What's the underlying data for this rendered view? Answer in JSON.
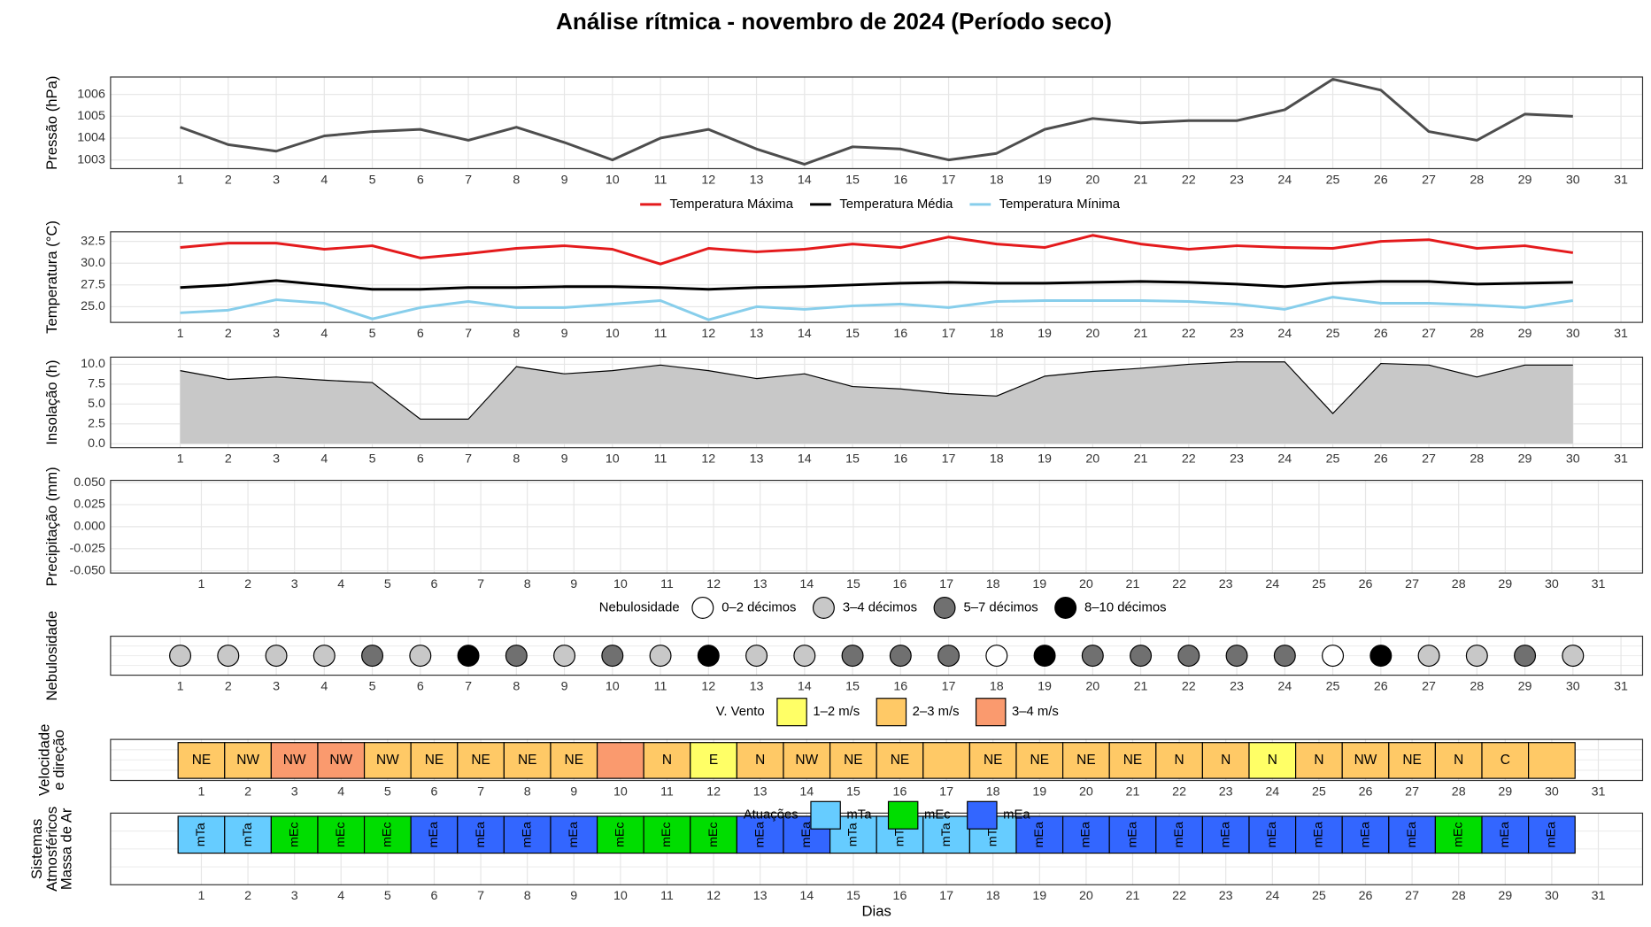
{
  "title": "Análise rítmica - novembro de 2024 (Período seco)",
  "chart_data": [
    {
      "type": "line",
      "ylabel": [
        "Pressão (hPa)"
      ],
      "color": "#4d4d4d",
      "grid": true,
      "x": [
        1,
        2,
        3,
        4,
        5,
        6,
        7,
        8,
        9,
        10,
        11,
        12,
        13,
        14,
        15,
        16,
        17,
        18,
        19,
        20,
        21,
        22,
        23,
        24,
        25,
        26,
        27,
        28,
        29,
        30
      ],
      "values": [
        1004.5,
        1003.7,
        1003.4,
        1004.1,
        1004.3,
        1004.4,
        1003.9,
        1004.5,
        1003.8,
        1003.0,
        1004.0,
        1004.4,
        1003.5,
        1002.8,
        1003.6,
        1003.5,
        1003.0,
        1003.3,
        1004.4,
        1004.9,
        1004.7,
        1004.8,
        1004.8,
        1005.3,
        1006.7,
        1006.2,
        1004.3,
        1003.9,
        1005.1,
        1005.0
      ],
      "xlim": [
        -0.45,
        31.45
      ],
      "xticks": [
        1,
        2,
        3,
        4,
        5,
        6,
        7,
        8,
        9,
        10,
        11,
        12,
        13,
        14,
        15,
        16,
        17,
        18,
        19,
        20,
        21,
        22,
        23,
        24,
        25,
        26,
        27,
        28,
        29,
        30,
        31
      ],
      "ylim": [
        1002.6,
        1006.8
      ],
      "yticks": [
        1003,
        1004,
        1005,
        1006
      ]
    },
    {
      "type": "line",
      "ylabel": [
        "Temperatura (°C)"
      ],
      "grid": true,
      "legend": "top",
      "x": [
        1,
        2,
        3,
        4,
        5,
        6,
        7,
        8,
        9,
        10,
        11,
        12,
        13,
        14,
        15,
        16,
        17,
        18,
        19,
        20,
        21,
        22,
        23,
        24,
        25,
        26,
        27,
        28,
        29,
        30
      ],
      "series": [
        {
          "name": "Temperatura Máxima",
          "color": "#e41a1c",
          "values": [
            31.8,
            32.3,
            32.3,
            31.6,
            32.0,
            30.6,
            31.1,
            31.7,
            32.0,
            31.6,
            29.9,
            31.7,
            31.3,
            31.6,
            32.2,
            31.8,
            33.0,
            32.2,
            31.8,
            33.2,
            32.2,
            31.6,
            32.0,
            31.8,
            31.7,
            32.5,
            32.7,
            31.7,
            32.0,
            31.2
          ]
        },
        {
          "name": "Temperatura Média",
          "color": "#000000",
          "values": [
            27.2,
            27.5,
            28.0,
            27.5,
            27.0,
            27.0,
            27.2,
            27.2,
            27.3,
            27.3,
            27.2,
            27.0,
            27.2,
            27.3,
            27.5,
            27.7,
            27.8,
            27.7,
            27.7,
            27.8,
            27.9,
            27.8,
            27.6,
            27.3,
            27.7,
            27.9,
            27.9,
            27.6,
            27.7,
            27.8
          ]
        },
        {
          "name": "Temperatura Mínima",
          "color": "#87ceeb",
          "values": [
            24.3,
            24.6,
            25.8,
            25.4,
            23.6,
            24.9,
            25.6,
            24.9,
            24.9,
            25.3,
            25.7,
            23.5,
            25.0,
            24.7,
            25.1,
            25.3,
            24.9,
            25.6,
            25.7,
            25.7,
            25.7,
            25.6,
            25.3,
            24.7,
            26.1,
            25.4,
            25.4,
            25.2,
            24.9,
            25.7
          ]
        }
      ],
      "xlim": [
        -0.45,
        31.45
      ],
      "xticks": [
        1,
        2,
        3,
        4,
        5,
        6,
        7,
        8,
        9,
        10,
        11,
        12,
        13,
        14,
        15,
        16,
        17,
        18,
        19,
        20,
        21,
        22,
        23,
        24,
        25,
        26,
        27,
        28,
        29,
        30,
        31
      ],
      "ylim": [
        23.2,
        33.6
      ],
      "yticks": [
        {
          "value": 25,
          "label": "25.0"
        },
        27.5,
        {
          "value": 30,
          "label": "30.0"
        },
        32.5
      ]
    },
    {
      "type": "area",
      "ylabel": [
        "Insolação (h)"
      ],
      "color": "#000000",
      "fill": "#c8c8c8",
      "grid": true,
      "x": [
        1,
        2,
        3,
        4,
        5,
        6,
        7,
        8,
        9,
        10,
        11,
        12,
        13,
        14,
        15,
        16,
        17,
        18,
        19,
        20,
        21,
        22,
        23,
        24,
        25,
        26,
        27,
        28,
        29,
        30
      ],
      "values": [
        9.2,
        8.1,
        8.4,
        8.0,
        7.7,
        3.1,
        3.1,
        9.7,
        8.8,
        9.2,
        9.9,
        9.2,
        8.2,
        8.8,
        7.2,
        6.9,
        6.3,
        6.0,
        8.5,
        9.1,
        9.5,
        10.0,
        10.3,
        10.3,
        3.8,
        10.1,
        9.9,
        8.4,
        9.9,
        9.9
      ],
      "xlim": [
        -0.45,
        31.45
      ],
      "xticks": [
        1,
        2,
        3,
        4,
        5,
        6,
        7,
        8,
        9,
        10,
        11,
        12,
        13,
        14,
        15,
        16,
        17,
        18,
        19,
        20,
        21,
        22,
        23,
        24,
        25,
        26,
        27,
        28,
        29,
        30,
        31
      ],
      "ylim": [
        -0.5,
        10.9
      ],
      "yticks": [
        {
          "value": 0,
          "label": "0.0"
        },
        2.5,
        {
          "value": 5,
          "label": "5.0"
        },
        7.5,
        {
          "value": 10,
          "label": "10.0"
        }
      ]
    },
    {
      "type": "line",
      "ylabel": [
        "Precipitação (mm)"
      ],
      "grid": true,
      "xlim": [
        -0.95,
        31.95
      ],
      "xticks": [
        1,
        2,
        3,
        4,
        5,
        6,
        7,
        8,
        9,
        10,
        11,
        12,
        13,
        14,
        15,
        16,
        17,
        18,
        19,
        20,
        21,
        22,
        23,
        24,
        25,
        26,
        27,
        28,
        29,
        30,
        31
      ],
      "ylim": [
        -0.0525,
        0.0525
      ],
      "yticks": [
        {
          "value": -0.05,
          "label": "-0.050"
        },
        {
          "value": -0.025,
          "label": "-0.025"
        },
        {
          "value": 0,
          "label": "0.000"
        },
        {
          "value": 0.025,
          "label": "0.025"
        },
        {
          "value": 0.05,
          "label": "0.050"
        }
      ]
    },
    {
      "type": "dot",
      "ylabel": [
        "Nebulosidade"
      ],
      "legend_title": "Nebulosidade",
      "legend": "top",
      "grid": true,
      "classes": [
        {
          "label": "0–2 décimos",
          "color": "#ffffff"
        },
        {
          "label": "3–4 décimos",
          "color": "#c8c8c8"
        },
        {
          "label": "5–7 décimos",
          "color": "#707070"
        },
        {
          "label": "8–10 décimos",
          "color": "#000000"
        }
      ],
      "x": [
        1,
        2,
        3,
        4,
        5,
        6,
        7,
        8,
        9,
        10,
        11,
        12,
        13,
        14,
        15,
        16,
        17,
        18,
        19,
        20,
        21,
        22,
        23,
        24,
        25,
        26,
        27,
        28,
        29,
        30
      ],
      "values": [
        "3–4 décimos",
        "3–4 décimos",
        "3–4 décimos",
        "3–4 décimos",
        "5–7 décimos",
        "3–4 décimos",
        "8–10 décimos",
        "5–7 décimos",
        "3–4 décimos",
        "5–7 décimos",
        "3–4 décimos",
        "8–10 décimos",
        "3–4 décimos",
        "3–4 décimos",
        "5–7 décimos",
        "5–7 décimos",
        "5–7 décimos",
        "0–2 décimos",
        "8–10 décimos",
        "5–7 décimos",
        "5–7 décimos",
        "5–7 décimos",
        "5–7 décimos",
        "5–7 décimos",
        "0–2 décimos",
        "8–10 décimos",
        "3–4 décimos",
        "3–4 décimos",
        "5–7 décimos",
        "3–4 décimos"
      ],
      "xlim": [
        -0.45,
        31.45
      ],
      "xticks": [
        1,
        2,
        3,
        4,
        5,
        6,
        7,
        8,
        9,
        10,
        11,
        12,
        13,
        14,
        15,
        16,
        17,
        18,
        19,
        20,
        21,
        22,
        23,
        24,
        25,
        26,
        27,
        28,
        29,
        30,
        31
      ]
    },
    {
      "type": "tile",
      "ylabel": [
        "Velocidade",
        "e direção"
      ],
      "legend_title": "V. Vento",
      "legend": "top",
      "grid": true,
      "classes": [
        {
          "label": "1–2 m/s",
          "color": "#ffff66"
        },
        {
          "label": "2–3 m/s",
          "color": "#ffc966"
        },
        {
          "label": "3–4 m/s",
          "color": "#fa9a6e"
        }
      ],
      "x": [
        1,
        2,
        3,
        4,
        5,
        6,
        7,
        8,
        9,
        10,
        11,
        12,
        13,
        14,
        15,
        16,
        17,
        18,
        19,
        20,
        21,
        22,
        23,
        24,
        25,
        26,
        27,
        28,
        29,
        30
      ],
      "values": [
        "2–3 m/s",
        "2–3 m/s",
        "3–4 m/s",
        "3–4 m/s",
        "2–3 m/s",
        "2–3 m/s",
        "2–3 m/s",
        "2–3 m/s",
        "2–3 m/s",
        "3–4 m/s",
        "2–3 m/s",
        "1–2 m/s",
        "2–3 m/s",
        "2–3 m/s",
        "2–3 m/s",
        "2–3 m/s",
        "2–3 m/s",
        "2–3 m/s",
        "2–3 m/s",
        "2–3 m/s",
        "2–3 m/s",
        "2–3 m/s",
        "2–3 m/s",
        "1–2 m/s",
        "2–3 m/s",
        "2–3 m/s",
        "2–3 m/s",
        "2–3 m/s",
        "2–3 m/s",
        "2–3 m/s"
      ],
      "labels": [
        "NE",
        "NW",
        "NW",
        "NW",
        "NW",
        "NE",
        "NE",
        "NE",
        "NE",
        null,
        "N",
        "E",
        "N",
        "NW",
        "NE",
        "NE",
        null,
        "NE",
        "NE",
        "NE",
        "NE",
        "N",
        "N",
        "N",
        "N",
        "NW",
        "NE",
        "N",
        "C",
        null
      ],
      "xlim": [
        -0.95,
        31.95
      ],
      "xticks": [
        1,
        2,
        3,
        4,
        5,
        6,
        7,
        8,
        9,
        10,
        11,
        12,
        13,
        14,
        15,
        16,
        17,
        18,
        19,
        20,
        21,
        22,
        23,
        24,
        25,
        26,
        27,
        28,
        29,
        30,
        31
      ]
    },
    {
      "type": "tile",
      "ylabel": [
        "Sistemas",
        "Atmosféricos",
        "Massa de Ar"
      ],
      "legend_title": "Atuações",
      "legend": "top",
      "grid": true,
      "xlabel": "Dias",
      "classes": [
        {
          "label": "mTa",
          "color": "#66ccff"
        },
        {
          "label": "mEc",
          "color": "#00dd00"
        },
        {
          "label": "mEa",
          "color": "#3366ff"
        }
      ],
      "x": [
        1,
        2,
        3,
        4,
        5,
        6,
        7,
        8,
        9,
        10,
        11,
        12,
        13,
        14,
        15,
        16,
        17,
        18,
        19,
        20,
        21,
        22,
        23,
        24,
        25,
        26,
        27,
        28,
        29,
        30
      ],
      "values": [
        "mTa",
        "mTa",
        "mEc",
        "mEc",
        "mEc",
        "mEa",
        "mEa",
        "mEa",
        "mEa",
        "mEc",
        "mEc",
        "mEc",
        "mEa",
        "mEa",
        "mTa",
        "mTa",
        "mTa",
        "mTa",
        "mEa",
        "mEa",
        "mEa",
        "mEa",
        "mEa",
        "mEa",
        "mEa",
        "mEa",
        "mEa",
        "mEc",
        "mEa",
        "mEa"
      ],
      "xlim": [
        -0.95,
        31.95
      ],
      "xticks": [
        1,
        2,
        3,
        4,
        5,
        6,
        7,
        8,
        9,
        10,
        11,
        12,
        13,
        14,
        15,
        16,
        17,
        18,
        19,
        20,
        21,
        22,
        23,
        24,
        25,
        26,
        27,
        28,
        29,
        30,
        31
      ]
    }
  ]
}
